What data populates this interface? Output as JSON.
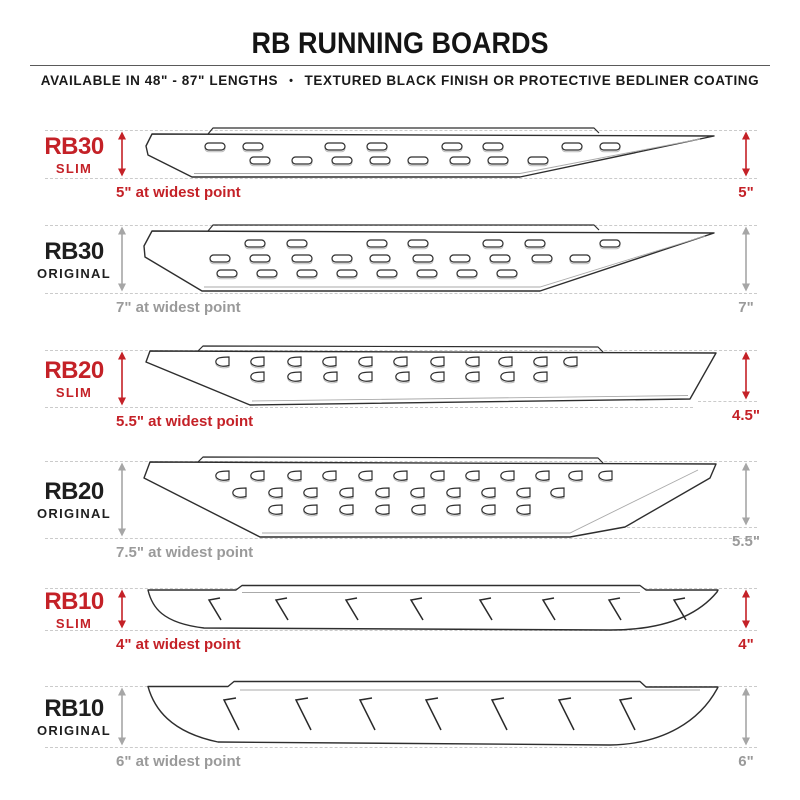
{
  "header": {
    "title": "RB RUNNING BOARDS",
    "subtitle_left": "AVAILABLE IN 48\" - 87\" LENGTHS",
    "separator": "•",
    "subtitle_right": "TEXTURED BLACK FINISH OR PROTECTIVE BEDLINER COATING"
  },
  "colors": {
    "red": "#c42127",
    "gray": "#a6a6a6",
    "ink": "#1e1e1e",
    "dash": "#cbcbcb"
  },
  "boards": [
    {
      "model": "RB30",
      "variant": "SLIM",
      "width_label": "5\" at widest point",
      "height_label": "5\"",
      "accent": "red"
    },
    {
      "model": "RB30",
      "variant": "ORIGINAL",
      "width_label": "7\" at widest point",
      "height_label": "7\"",
      "accent": "gray"
    },
    {
      "model": "RB20",
      "variant": "SLIM",
      "width_label": "5.5\" at widest point",
      "height_label": "4.5\"",
      "accent": "red"
    },
    {
      "model": "RB20",
      "variant": "ORIGINAL",
      "width_label": "7.5\" at widest point",
      "height_label": "5.5\"",
      "accent": "gray"
    },
    {
      "model": "RB10",
      "variant": "SLIM",
      "width_label": "4\" at widest point",
      "height_label": "4\"",
      "accent": "red"
    },
    {
      "model": "RB10",
      "variant": "ORIGINAL",
      "width_label": "6\" at widest point",
      "height_label": "6\"",
      "accent": "gray"
    }
  ]
}
